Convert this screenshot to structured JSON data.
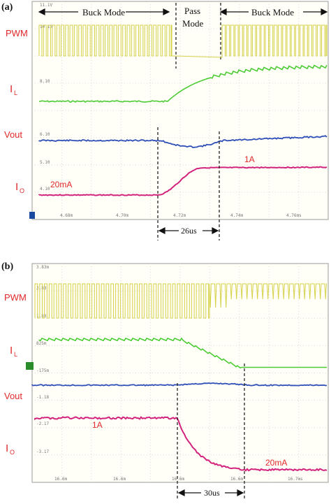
{
  "panel_a": {
    "panel_label": "(a)",
    "mode_labels": {
      "buck_left": "Buck Mode",
      "pass_line1": "Pass",
      "pass_line2": "Mode",
      "buck_right": "Buck Mode"
    },
    "channel_labels": {
      "pwm": "PWM",
      "il_main": "I",
      "il_sub": "L",
      "vout": "Vout",
      "io_main": "I",
      "io_sub": "O"
    },
    "annotations": {
      "io_low": "20mA",
      "io_high": "1A",
      "interval": "26us"
    },
    "scope_marks": {
      "top_scale": "11.1V",
      "pwm_level": "10.10",
      "il_level": "8.10",
      "vout_level": "6.10",
      "io_level1": "5.10",
      "io_level2": "4.10",
      "x_ticks": [
        "4.68m",
        "4.70m",
        "4.72m",
        "4.74m",
        "4.76ms"
      ]
    },
    "colors": {
      "pwm": "#d6d24a",
      "il": "#4ccc34",
      "vout": "#2e4fb8",
      "io": "#d2247c"
    }
  },
  "panel_b": {
    "panel_label": "(b)",
    "channel_labels": {
      "pwm": "PWM",
      "il_main": "I",
      "il_sub": "L",
      "vout": "Vout",
      "io_main": "I",
      "io_sub": "O"
    },
    "annotations": {
      "io_high": "1A",
      "io_low": "20mA",
      "interval": "30us"
    },
    "scope_marks": {
      "top_scale": "3.83m",
      "pwm_level": "2.83",
      "pwm_level2": "1.83",
      "il_level": "825m",
      "il_level2": "-175m",
      "vout_level": "-1.18",
      "io_level1": "-2.17",
      "io_level2": "-3.17",
      "x_ticks": [
        "16.6m",
        "16.6m",
        "16.6m",
        "16.6m",
        "16.7ms"
      ]
    },
    "colors": {
      "pwm": "#d6d24a",
      "il": "#4ccc34",
      "vout": "#2e4fb8",
      "io": "#d2247c"
    }
  }
}
